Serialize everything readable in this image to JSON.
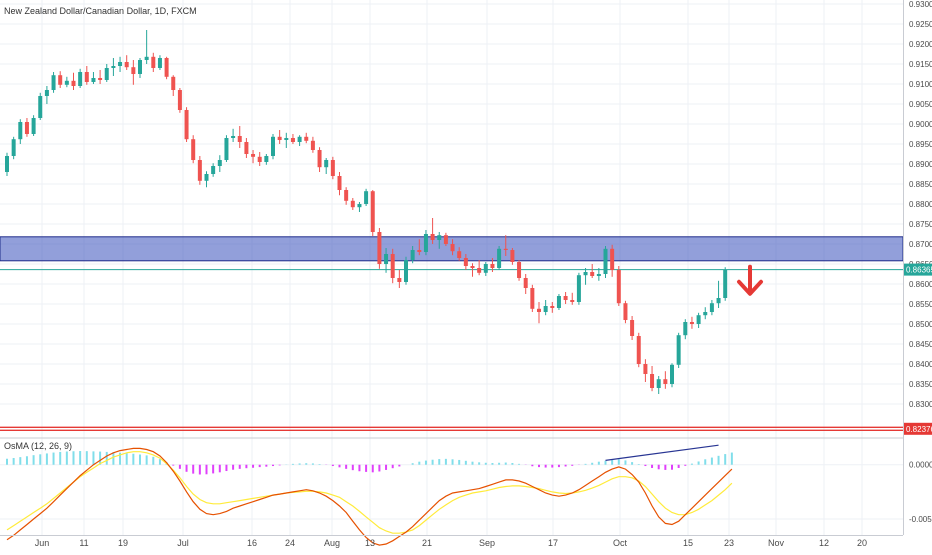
{
  "symbol_title": "New Zealand Dollar/Canadian Dollar, 1D, FXCM",
  "colors": {
    "up": "#26a69a",
    "down": "#ef5350",
    "zone_fill": "#4a5fc1",
    "zone_border": "#1e2c8a",
    "support_line": "#e53935",
    "price_line": "#26a69a",
    "osc_pos": "#80deea",
    "osc_neg": "#e040fb",
    "macd_line": "#e65100",
    "signal_line": "#ffeb3b",
    "trendline": "#283593",
    "arrow": "#e53935",
    "axis_text": "#4a4a4a",
    "grid": "#eef1f6"
  },
  "chart_data": [
    {
      "type": "candlestick",
      "title": "New Zealand Dollar/Canadian Dollar, 1D, FXCM",
      "ylim": [
        0.8215,
        0.931
      ],
      "y_ticks": [
        "0.93000",
        "0.92500",
        "0.92000",
        "0.91500",
        "0.91000",
        "0.90500",
        "0.90000",
        "0.89500",
        "0.89000",
        "0.88500",
        "0.88000",
        "0.87500",
        "0.87000",
        "0.86500",
        "0.86000",
        "0.85500",
        "0.85000",
        "0.84500",
        "0.84000",
        "0.83500",
        "0.83000"
      ],
      "x_ticks": [
        "Jun",
        "11",
        "19",
        "Jul",
        "16",
        "24",
        "Aug",
        "13",
        "21",
        "Sep",
        "17",
        "Oct",
        "15",
        "23",
        "Nov",
        "12",
        "20"
      ],
      "last_price_label": "0.86365",
      "support_label": "0.82376",
      "support_level": 0.8238,
      "resistance_zone": [
        0.8658,
        0.8718
      ],
      "ohlc": [
        [
          0.888,
          0.8928,
          0.887,
          0.892
        ],
        [
          0.892,
          0.8968,
          0.8912,
          0.8962
        ],
        [
          0.8962,
          0.9012,
          0.895,
          0.9005
        ],
        [
          0.9005,
          0.9015,
          0.8968,
          0.8975
        ],
        [
          0.8975,
          0.9022,
          0.897,
          0.9015
        ],
        [
          0.9015,
          0.9078,
          0.901,
          0.907
        ],
        [
          0.907,
          0.9095,
          0.905,
          0.9085
        ],
        [
          0.9085,
          0.913,
          0.9078,
          0.9122
        ],
        [
          0.9122,
          0.9132,
          0.909,
          0.9098
        ],
        [
          0.9098,
          0.9118,
          0.9092,
          0.9108
        ],
        [
          0.9108,
          0.9128,
          0.9085,
          0.9095
        ],
        [
          0.9095,
          0.9138,
          0.909,
          0.913
        ],
        [
          0.913,
          0.9145,
          0.9098,
          0.9105
        ],
        [
          0.9105,
          0.913,
          0.91,
          0.9115
        ],
        [
          0.9115,
          0.9135,
          0.91,
          0.911
        ],
        [
          0.911,
          0.915,
          0.9105,
          0.914
        ],
        [
          0.914,
          0.9165,
          0.912,
          0.9145
        ],
        [
          0.9145,
          0.9168,
          0.913,
          0.9155
        ],
        [
          0.9155,
          0.9172,
          0.9135,
          0.9142
        ],
        [
          0.9142,
          0.916,
          0.9098,
          0.9125
        ],
        [
          0.9125,
          0.9165,
          0.9115,
          0.916
        ],
        [
          0.916,
          0.9235,
          0.915,
          0.9168
        ],
        [
          0.9168,
          0.9178,
          0.913,
          0.914
        ],
        [
          0.914,
          0.9172,
          0.9135,
          0.9165
        ],
        [
          0.9165,
          0.9168,
          0.9112,
          0.9118
        ],
        [
          0.9118,
          0.9122,
          0.907,
          0.9085
        ],
        [
          0.9085,
          0.909,
          0.9028,
          0.9035
        ],
        [
          0.9035,
          0.9042,
          0.8955,
          0.8962
        ],
        [
          0.8962,
          0.8972,
          0.8902,
          0.891
        ],
        [
          0.891,
          0.892,
          0.8848,
          0.8858
        ],
        [
          0.8858,
          0.8882,
          0.8842,
          0.8875
        ],
        [
          0.8875,
          0.8902,
          0.8868,
          0.8895
        ],
        [
          0.8895,
          0.8922,
          0.888,
          0.891
        ],
        [
          0.891,
          0.8972,
          0.8905,
          0.8965
        ],
        [
          0.8965,
          0.8988,
          0.8955,
          0.897
        ],
        [
          0.897,
          0.8995,
          0.894,
          0.8955
        ],
        [
          0.8955,
          0.8965,
          0.8915,
          0.8925
        ],
        [
          0.8925,
          0.8935,
          0.8902,
          0.8918
        ],
        [
          0.8918,
          0.893,
          0.8895,
          0.8905
        ],
        [
          0.8905,
          0.8925,
          0.8898,
          0.892
        ],
        [
          0.892,
          0.8975,
          0.8912,
          0.8968
        ],
        [
          0.8968,
          0.8985,
          0.895,
          0.896
        ],
        [
          0.896,
          0.8978,
          0.894,
          0.8965
        ],
        [
          0.8965,
          0.8975,
          0.895,
          0.8955
        ],
        [
          0.8955,
          0.8972,
          0.8945,
          0.8968
        ],
        [
          0.8968,
          0.8978,
          0.8952,
          0.8958
        ],
        [
          0.8958,
          0.8968,
          0.8928,
          0.8935
        ],
        [
          0.8935,
          0.8942,
          0.888,
          0.8892
        ],
        [
          0.8892,
          0.8915,
          0.8875,
          0.891
        ],
        [
          0.891,
          0.8918,
          0.8862,
          0.887
        ],
        [
          0.887,
          0.888,
          0.8822,
          0.8835
        ],
        [
          0.8835,
          0.8842,
          0.8798,
          0.8808
        ],
        [
          0.8808,
          0.8815,
          0.8785,
          0.8792
        ],
        [
          0.8792,
          0.8805,
          0.878,
          0.88
        ],
        [
          0.88,
          0.8838,
          0.8795,
          0.8832
        ],
        [
          0.8832,
          0.8835,
          0.872,
          0.873
        ],
        [
          0.873,
          0.874,
          0.8638,
          0.865
        ],
        [
          0.865,
          0.869,
          0.8628,
          0.8675
        ],
        [
          0.8675,
          0.8688,
          0.8602,
          0.8615
        ],
        [
          0.8615,
          0.8635,
          0.859,
          0.8605
        ],
        [
          0.8605,
          0.8668,
          0.8598,
          0.866
        ],
        [
          0.866,
          0.8695,
          0.8652,
          0.8685
        ],
        [
          0.8685,
          0.8712,
          0.8672,
          0.868
        ],
        [
          0.868,
          0.8735,
          0.8672,
          0.8725
        ],
        [
          0.8725,
          0.8765,
          0.87,
          0.871
        ],
        [
          0.871,
          0.873,
          0.8688,
          0.8722
        ],
        [
          0.8722,
          0.8728,
          0.8695,
          0.87
        ],
        [
          0.87,
          0.8712,
          0.8672,
          0.8682
        ],
        [
          0.8682,
          0.8692,
          0.8658,
          0.8665
        ],
        [
          0.8665,
          0.8675,
          0.8635,
          0.8645
        ],
        [
          0.8645,
          0.8652,
          0.8618,
          0.864
        ],
        [
          0.864,
          0.866,
          0.8622,
          0.8628
        ],
        [
          0.8628,
          0.8655,
          0.862,
          0.865
        ],
        [
          0.865,
          0.8665,
          0.863,
          0.864
        ],
        [
          0.864,
          0.8695,
          0.8635,
          0.8688
        ],
        [
          0.8688,
          0.8722,
          0.867,
          0.8685
        ],
        [
          0.8685,
          0.869,
          0.8648,
          0.8655
        ],
        [
          0.8655,
          0.866,
          0.8608,
          0.8615
        ],
        [
          0.8615,
          0.8625,
          0.8575,
          0.859
        ],
        [
          0.859,
          0.8598,
          0.853,
          0.8538
        ],
        [
          0.8538,
          0.8555,
          0.8502,
          0.853
        ],
        [
          0.853,
          0.856,
          0.8522,
          0.8545
        ],
        [
          0.8545,
          0.8555,
          0.8528,
          0.854
        ],
        [
          0.854,
          0.8575,
          0.8535,
          0.857
        ],
        [
          0.857,
          0.858,
          0.855,
          0.856
        ],
        [
          0.856,
          0.8578,
          0.8548,
          0.8555
        ],
        [
          0.8555,
          0.8628,
          0.8548,
          0.8622
        ],
        [
          0.8622,
          0.864,
          0.8598,
          0.863
        ],
        [
          0.863,
          0.865,
          0.8615,
          0.862
        ],
        [
          0.862,
          0.864,
          0.8608,
          0.8625
        ],
        [
          0.8625,
          0.8695,
          0.8615,
          0.8688
        ],
        [
          0.8688,
          0.8698,
          0.8618,
          0.8635
        ],
        [
          0.8635,
          0.8645,
          0.8545,
          0.8552
        ],
        [
          0.8552,
          0.8558,
          0.8502,
          0.851
        ],
        [
          0.851,
          0.852,
          0.846,
          0.847
        ],
        [
          0.847,
          0.8478,
          0.8392,
          0.84
        ],
        [
          0.84,
          0.8412,
          0.8355,
          0.8375
        ],
        [
          0.8375,
          0.8395,
          0.8332,
          0.834
        ],
        [
          0.834,
          0.837,
          0.8325,
          0.8362
        ],
        [
          0.8362,
          0.8382,
          0.8338,
          0.835
        ],
        [
          0.835,
          0.8402,
          0.8342,
          0.8398
        ],
        [
          0.8398,
          0.8478,
          0.839,
          0.8472
        ],
        [
          0.8472,
          0.8512,
          0.8462,
          0.8505
        ],
        [
          0.8505,
          0.8518,
          0.8488,
          0.85
        ],
        [
          0.85,
          0.8528,
          0.849,
          0.8522
        ],
        [
          0.8522,
          0.8542,
          0.8512,
          0.853
        ],
        [
          0.853,
          0.856,
          0.8522,
          0.8552
        ],
        [
          0.8552,
          0.8608,
          0.854,
          0.8565
        ],
        [
          0.8565,
          0.8642,
          0.8558,
          0.8636
        ]
      ]
    },
    {
      "type": "histogram",
      "title": "OsMA (12, 26, 9)",
      "ylim": [
        -0.00785,
        0.00246
      ],
      "y_ticks": [
        "0.0000",
        "-0.0050"
      ],
      "histogram": [
        0.00055,
        0.00062,
        0.0007,
        0.00078,
        0.00088,
        0.00096,
        0.00104,
        0.00112,
        0.00118,
        0.00122,
        0.00124,
        0.00126,
        0.00125,
        0.00123,
        0.00121,
        0.00118,
        0.00115,
        0.00111,
        0.00106,
        0.00101,
        0.00094,
        0.00086,
        0.00073,
        0.00052,
        0.00022,
        -8e-05,
        -0.00038,
        -0.00065,
        -0.00082,
        -0.0009,
        -0.00088,
        -0.0008,
        -0.0007,
        -0.00058,
        -0.00046,
        -0.00038,
        -0.00032,
        -0.00028,
        -0.00022,
        -0.00018,
        -0.00012,
        -6e-05,
        2e-05,
        8e-05,
        0.00012,
        0.00014,
        0.00012,
        6e-05,
        -2e-05,
        -0.00012,
        -0.00024,
        -0.00038,
        -0.0005,
        -0.0006,
        -0.00066,
        -0.0007,
        -0.00062,
        -0.00048,
        -0.00032,
        -0.00016,
        0.0,
        0.00014,
        0.00028,
        0.00038,
        0.00046,
        0.00052,
        0.00054,
        0.0005,
        0.00044,
        0.00036,
        0.00028,
        0.00022,
        0.00018,
        0.00016,
        0.00018,
        0.0002,
        0.00016,
        8e-05,
        -2e-05,
        -0.00014,
        -0.00022,
        -0.00026,
        -0.00026,
        -0.00022,
        -0.00016,
        -0.0001,
        -2e-05,
        8e-05,
        0.00018,
        0.00028,
        0.00036,
        0.00046,
        0.0005,
        0.0004,
        0.00024,
        6e-05,
        -0.00012,
        -0.0003,
        -0.00042,
        -0.00048,
        -0.00046,
        -0.0003,
        -0.0001,
        0.0001,
        0.0003,
        0.0005,
        0.00066,
        0.00082,
        0.00098,
        0.00112
      ],
      "macd": [
        -0.0069,
        -0.0065,
        -0.006,
        -0.0055,
        -0.005,
        -0.0045,
        -0.004,
        -0.0034,
        -0.0028,
        -0.0022,
        -0.0016,
        -0.001,
        -0.0005,
        0.0,
        0.0004,
        0.0008,
        0.0011,
        0.0013,
        0.0014,
        0.0015,
        0.0015,
        0.0014,
        0.0012,
        0.0008,
        0.0002,
        -0.0006,
        -0.0015,
        -0.0025,
        -0.0034,
        -0.0041,
        -0.0045,
        -0.0046,
        -0.0045,
        -0.0043,
        -0.004,
        -0.0038,
        -0.0036,
        -0.0034,
        -0.0032,
        -0.003,
        -0.0028,
        -0.0027,
        -0.0026,
        -0.0025,
        -0.0024,
        -0.0023,
        -0.0024,
        -0.0026,
        -0.0029,
        -0.0033,
        -0.0038,
        -0.0044,
        -0.0052,
        -0.006,
        -0.0067,
        -0.0072,
        -0.0074,
        -0.0073,
        -0.007,
        -0.0066,
        -0.0062,
        -0.0057,
        -0.0051,
        -0.0045,
        -0.0039,
        -0.0033,
        -0.0029,
        -0.0026,
        -0.0025,
        -0.0024,
        -0.0023,
        -0.0022,
        -0.002,
        -0.0018,
        -0.0016,
        -0.0014,
        -0.0014,
        -0.0015,
        -0.0017,
        -0.002,
        -0.0023,
        -0.0026,
        -0.0028,
        -0.0029,
        -0.0028,
        -0.0026,
        -0.0023,
        -0.0019,
        -0.0015,
        -0.0011,
        -0.0007,
        -0.0004,
        -0.0002,
        -0.0004,
        -0.0009,
        -0.0016,
        -0.0026,
        -0.0038,
        -0.0048,
        -0.0054,
        -0.0055,
        -0.0052,
        -0.0046,
        -0.004,
        -0.0034,
        -0.0028,
        -0.0022,
        -0.0016,
        -0.001,
        -0.0004
      ],
      "signal": [
        -0.006,
        -0.0056,
        -0.0052,
        -0.0048,
        -0.0044,
        -0.004,
        -0.0036,
        -0.0031,
        -0.0026,
        -0.0021,
        -0.0016,
        -0.0011,
        -0.0007,
        -0.0003,
        0.0001,
        0.0004,
        0.0007,
        0.0009,
        0.0011,
        0.0012,
        0.0012,
        0.0011,
        0.0009,
        0.0006,
        0.0001,
        -0.0005,
        -0.0012,
        -0.002,
        -0.0027,
        -0.0032,
        -0.0035,
        -0.0036,
        -0.0036,
        -0.0035,
        -0.0034,
        -0.0033,
        -0.0032,
        -0.0031,
        -0.003,
        -0.0029,
        -0.0028,
        -0.0027,
        -0.0026,
        -0.00255,
        -0.0025,
        -0.00245,
        -0.00245,
        -0.0025,
        -0.0026,
        -0.0028,
        -0.003,
        -0.0034,
        -0.0038,
        -0.0043,
        -0.0048,
        -0.0053,
        -0.0058,
        -0.0061,
        -0.0063,
        -0.0063,
        -0.0062,
        -0.006,
        -0.0056,
        -0.0051,
        -0.0046,
        -0.0041,
        -0.0037,
        -0.0033,
        -0.003,
        -0.0028,
        -0.0026,
        -0.0025,
        -0.0024,
        -0.00225,
        -0.0021,
        -0.002,
        -0.00195,
        -0.00195,
        -0.002,
        -0.0021,
        -0.0022,
        -0.00235,
        -0.0025,
        -0.0026,
        -0.00265,
        -0.0026,
        -0.0025,
        -0.00235,
        -0.00215,
        -0.0019,
        -0.0016,
        -0.0013,
        -0.0011,
        -0.0011,
        -0.0012,
        -0.0015,
        -0.002,
        -0.0027,
        -0.0034,
        -0.004,
        -0.0044,
        -0.0046,
        -0.0046,
        -0.0044,
        -0.0041,
        -0.0037,
        -0.0033,
        -0.0028,
        -0.0023,
        -0.0017
      ]
    }
  ]
}
